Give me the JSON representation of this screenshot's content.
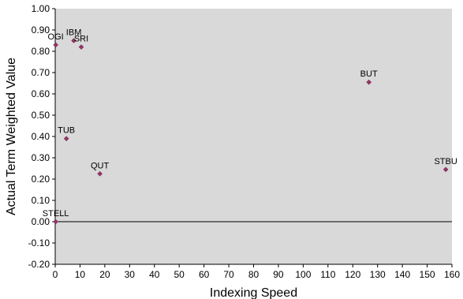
{
  "chart_data": {
    "type": "scatter",
    "title": "",
    "xlabel": "Indexing Speed",
    "ylabel": "Actual Term Weighted Value",
    "xlim": [
      0,
      160
    ],
    "ylim": [
      -0.2,
      1.0
    ],
    "x_ticks": [
      "0",
      "10",
      "20",
      "30",
      "40",
      "50",
      "60",
      "70",
      "80",
      "90",
      "100",
      "110",
      "120",
      "130",
      "140",
      "150",
      "160"
    ],
    "y_ticks": [
      "-0.20",
      "-0.10",
      "0.00",
      "0.10",
      "0.20",
      "0.30",
      "0.40",
      "0.50",
      "0.60",
      "0.70",
      "0.80",
      "0.90",
      "1.00"
    ],
    "grid": false,
    "reference_line_y": 0.0,
    "colors": {
      "plot_background": "#d9d9d9",
      "marker": "#993366",
      "axis": "#000000"
    },
    "points": [
      {
        "label": "OGI",
        "x": 0.2,
        "y": 0.83
      },
      {
        "label": "IBM",
        "x": 7.5,
        "y": 0.85
      },
      {
        "label": "SRI",
        "x": 10.5,
        "y": 0.82
      },
      {
        "label": "TUB",
        "x": 4.5,
        "y": 0.39
      },
      {
        "label": "QUT",
        "x": 18.0,
        "y": 0.225
      },
      {
        "label": "STELL",
        "x": 0.2,
        "y": 0.0
      },
      {
        "label": "BUT",
        "x": 126.5,
        "y": 0.655
      },
      {
        "label": "STBU",
        "x": 157.5,
        "y": 0.245
      }
    ]
  }
}
